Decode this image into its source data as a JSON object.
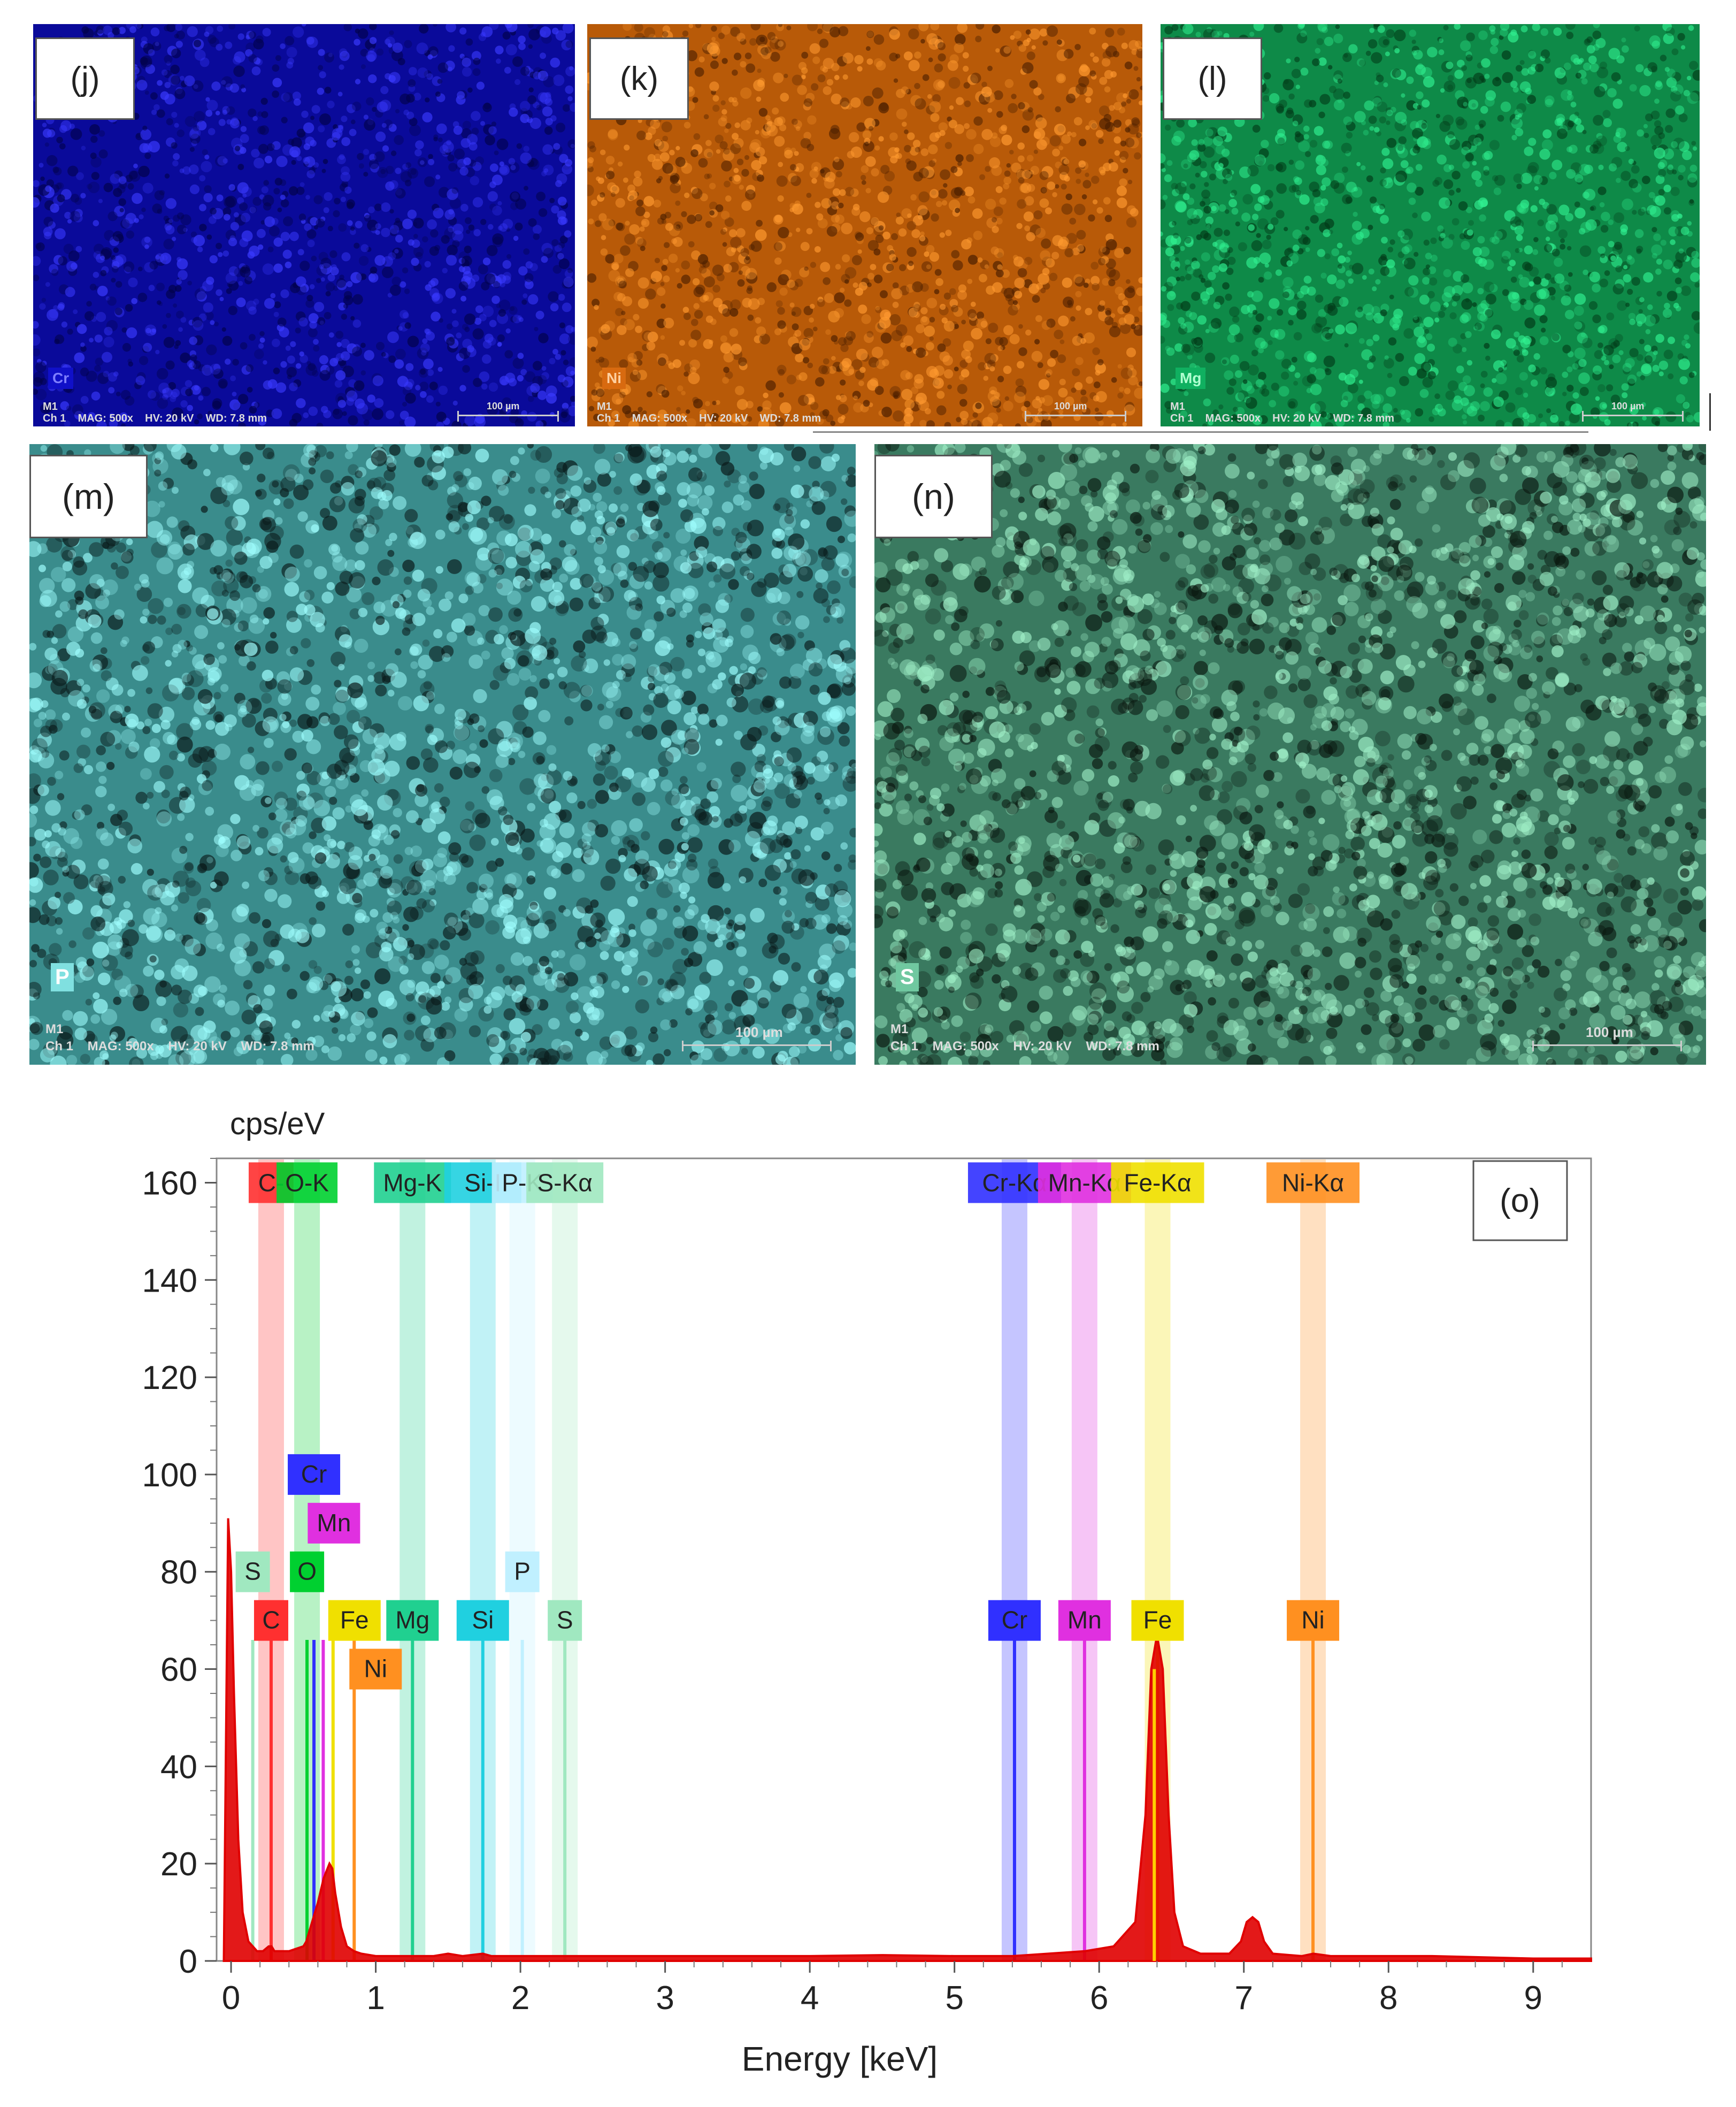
{
  "maps": [
    {
      "id": "j",
      "label": "(j)",
      "element": "Cr",
      "badge_bg": "#1010c8",
      "badge_fg": "#7f7fff",
      "base": "#0a0a9a",
      "bright": "#3a3aff",
      "dark": "#02024a",
      "meta_top": "M1",
      "meta": "Ch 1    MAG: 500x    HV: 20 kV    WD: 7.8 mm",
      "scale": "100 µm"
    },
    {
      "id": "k",
      "label": "(k)",
      "element": "Ni",
      "badge_bg": "#d86a10",
      "badge_fg": "#ffd0a0",
      "base": "#b85a08",
      "bright": "#ff9a30",
      "dark": "#4a1e00",
      "meta_top": "M1",
      "meta": "Ch 1    MAG: 500x    HV: 20 kV    WD: 7.8 mm",
      "scale": "100 µm"
    },
    {
      "id": "l",
      "label": "(l)",
      "element": "Mg",
      "badge_bg": "#10b060",
      "badge_fg": "#b0ffd0",
      "base": "#0e8a48",
      "bright": "#30f090",
      "dark": "#023a18",
      "meta_top": "M1",
      "meta": "Ch 1    MAG: 500x    HV: 20 kV    WD: 7.8 mm",
      "scale": "100 µm"
    },
    {
      "id": "m",
      "label": "(m)",
      "element": "P",
      "badge_bg": "#80e0e0",
      "badge_fg": "#ffffff",
      "base": "#3a8c8c",
      "bright": "#a0ffff",
      "dark": "#0a1a1a",
      "meta_top": "M1",
      "meta": "Ch 1    MAG: 500x    HV: 20 kV    WD: 7.8 mm",
      "scale": "100 µm"
    },
    {
      "id": "n",
      "label": "(n)",
      "element": "S",
      "badge_bg": "#70c8a0",
      "badge_fg": "#ffffff",
      "base": "#3a7a60",
      "bright": "#a0f0c8",
      "dark": "#0a1810",
      "meta_top": "M1",
      "meta": "Ch 1    MAG: 500x    HV: 20 kV    WD: 7.8 mm",
      "scale": "100 µm"
    }
  ],
  "chart_data": {
    "type": "line",
    "panel_label": "(o)",
    "ylabel": "cps/eV",
    "xlabel": "Energy [keV]",
    "xlim": [
      -0.1,
      9.4
    ],
    "ylim": [
      0,
      165
    ],
    "xticks": [
      0,
      1,
      2,
      3,
      4,
      5,
      6,
      7,
      8,
      9
    ],
    "yticks": [
      0,
      20,
      40,
      60,
      80,
      100,
      120,
      140,
      160
    ],
    "grid": false,
    "series": [
      {
        "color": "#e00000",
        "x": [
          -0.05,
          -0.02,
          0.0,
          0.02,
          0.05,
          0.08,
          0.12,
          0.18,
          0.22,
          0.26,
          0.28,
          0.3,
          0.34,
          0.4,
          0.5,
          0.52,
          0.55,
          0.6,
          0.64,
          0.68,
          0.7,
          0.72,
          0.76,
          0.8,
          0.85,
          0.9,
          1.0,
          1.2,
          1.4,
          1.5,
          1.6,
          1.74,
          1.8,
          2.0,
          2.5,
          3.0,
          3.5,
          4.0,
          4.5,
          5.0,
          5.4,
          5.9,
          6.1,
          6.25,
          6.32,
          6.36,
          6.4,
          6.44,
          6.48,
          6.52,
          6.58,
          6.7,
          6.9,
          6.98,
          7.02,
          7.06,
          7.1,
          7.14,
          7.2,
          7.4,
          7.48,
          7.6,
          8.0,
          8.3,
          9.0,
          9.4
        ],
        "y": [
          0,
          91,
          80,
          55,
          25,
          10,
          4,
          2,
          2,
          3,
          3,
          2,
          2,
          2,
          3,
          4,
          7,
          12,
          17,
          20,
          19,
          14,
          7,
          3,
          2,
          1.5,
          1,
          1,
          1,
          1.5,
          1,
          1.5,
          1,
          1,
          1,
          1,
          1,
          1,
          1.2,
          1,
          1,
          2,
          3,
          8,
          30,
          60,
          67,
          60,
          30,
          10,
          3,
          1.5,
          1.5,
          4,
          8,
          9,
          8,
          4,
          1.5,
          1,
          1.5,
          1,
          1,
          1,
          0.5,
          0.5
        ]
      }
    ],
    "element_lines": [
      {
        "label": "C",
        "energy": 0.277,
        "color": "#ff3030"
      },
      {
        "label": "O",
        "energy": 0.525,
        "color": "#00d030"
      },
      {
        "label": "Cr",
        "energy": 0.573,
        "color": "#3030ff"
      },
      {
        "label": "Mn",
        "energy": 0.637,
        "color": "#e030e0"
      },
      {
        "label": "Fe",
        "energy": 0.705,
        "color": "#f0e000"
      },
      {
        "label": "Ni",
        "energy": 0.851,
        "color": "#ff9020"
      },
      {
        "label": "Mg",
        "energy": 1.254,
        "color": "#20d090"
      },
      {
        "label": "Si",
        "energy": 1.74,
        "color": "#20d0e0"
      },
      {
        "label": "P",
        "energy": 2.013,
        "color": "#c0f0ff"
      },
      {
        "label": "S",
        "energy": 2.307,
        "color": "#a0e8c0"
      },
      {
        "label": "S",
        "energy": 0.15,
        "color": "#a0e8c0"
      },
      {
        "label": "Cr",
        "energy": 5.415,
        "color": "#3030ff"
      },
      {
        "label": "Mn",
        "energy": 5.899,
        "color": "#e030e0"
      },
      {
        "label": "Fe",
        "energy": 6.404,
        "color": "#f0e000"
      },
      {
        "label": "Ni",
        "energy": 7.478,
        "color": "#ff9020"
      }
    ],
    "top_labels": [
      {
        "label": "C-",
        "energy": 0.277,
        "color": "#ff3030"
      },
      {
        "label": "O-K",
        "energy": 0.525,
        "color": "#00d030"
      },
      {
        "label": "Mg-K",
        "energy": 1.254,
        "color": "#20d090"
      },
      {
        "label": "Si-I",
        "energy": 1.74,
        "color": "#20d0e0"
      },
      {
        "label": "P-K",
        "energy": 2.013,
        "color": "#c0f0ff"
      },
      {
        "label": "S-Kα",
        "energy": 2.307,
        "color": "#a0e8c0"
      },
      {
        "label": "Cr-Kα",
        "energy": 5.415,
        "color": "#3030ff"
      },
      {
        "label": "Mn-Kα",
        "energy": 5.899,
        "color": "#e030e0"
      },
      {
        "label": "Fe-Kα",
        "energy": 6.404,
        "color": "#f0e000"
      },
      {
        "label": "Ni-Kα",
        "energy": 7.478,
        "color": "#ff9020"
      }
    ]
  }
}
